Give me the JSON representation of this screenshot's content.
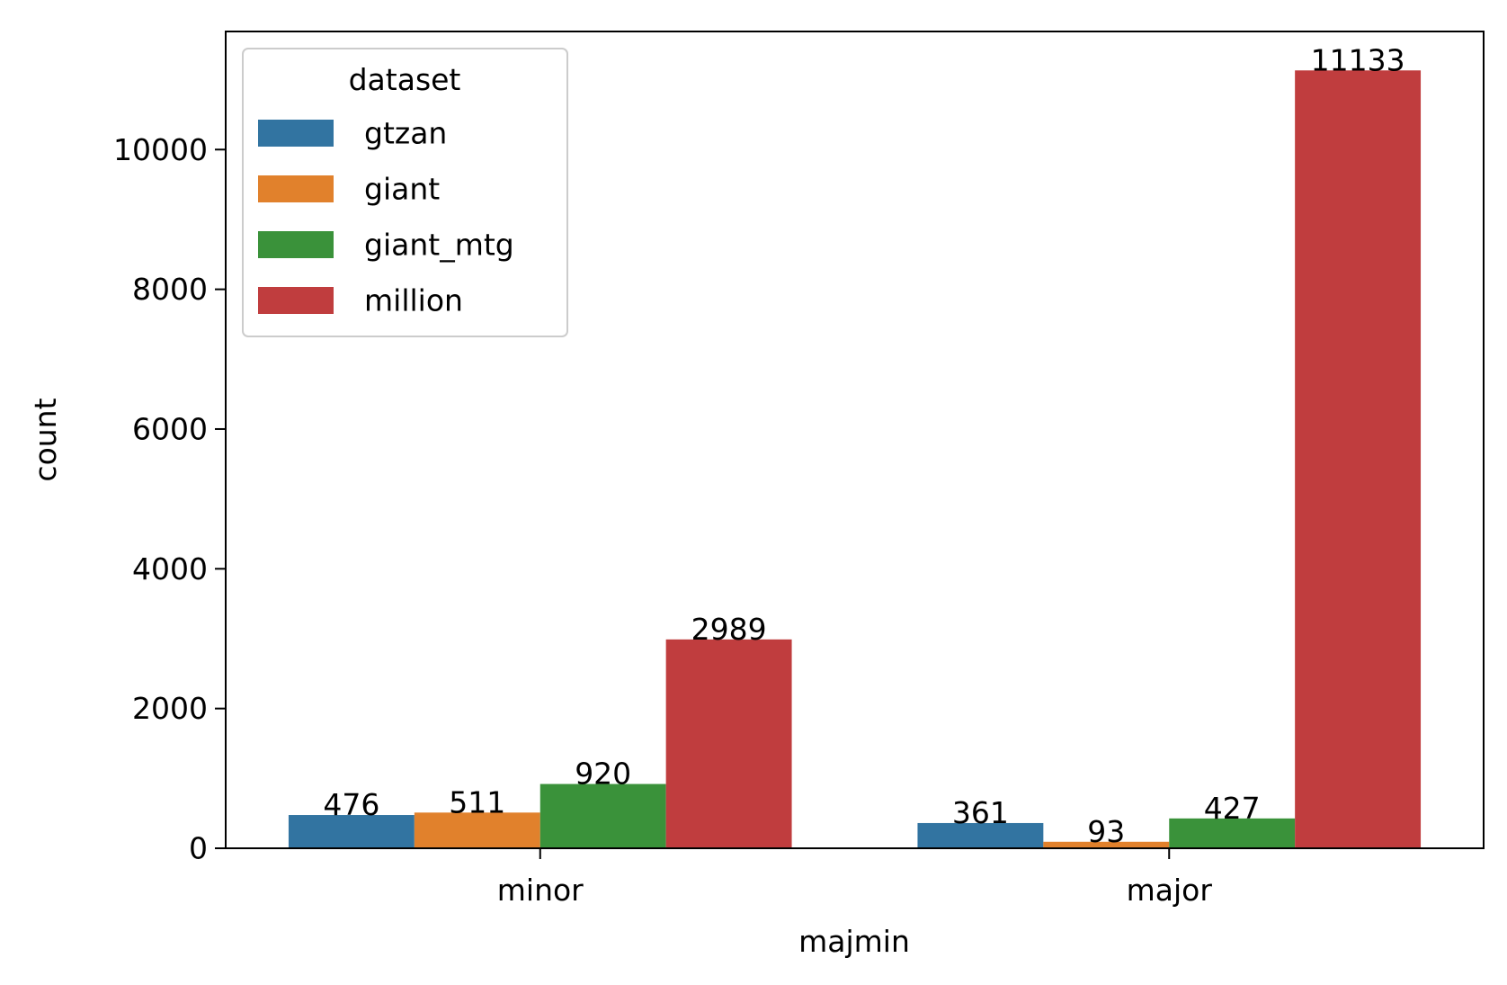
{
  "chart_data": {
    "type": "bar",
    "title": "",
    "xlabel": "majmin",
    "ylabel": "count",
    "categories": [
      "minor",
      "major"
    ],
    "series": [
      {
        "name": "gtzan",
        "color": "#3274a1",
        "values": [
          476,
          361
        ]
      },
      {
        "name": "giant",
        "color": "#e1812c",
        "values": [
          511,
          93
        ]
      },
      {
        "name": "giant_mtg",
        "color": "#3a923a",
        "values": [
          920,
          427
        ]
      },
      {
        "name": "million",
        "color": "#c03d3e",
        "values": [
          2989,
          11133
        ]
      }
    ],
    "bar_labels": [
      [
        "476",
        "361"
      ],
      [
        "511",
        "93"
      ],
      [
        "920",
        "427"
      ],
      [
        "2989",
        "11133"
      ]
    ],
    "yticks": [
      0,
      2000,
      4000,
      6000,
      8000,
      10000
    ],
    "ytick_labels": [
      "0",
      "2000",
      "4000",
      "6000",
      "8000",
      "10000"
    ],
    "ylim": [
      0,
      11690
    ],
    "grid": false,
    "legend": {
      "title": "dataset",
      "position": "top-left"
    }
  }
}
